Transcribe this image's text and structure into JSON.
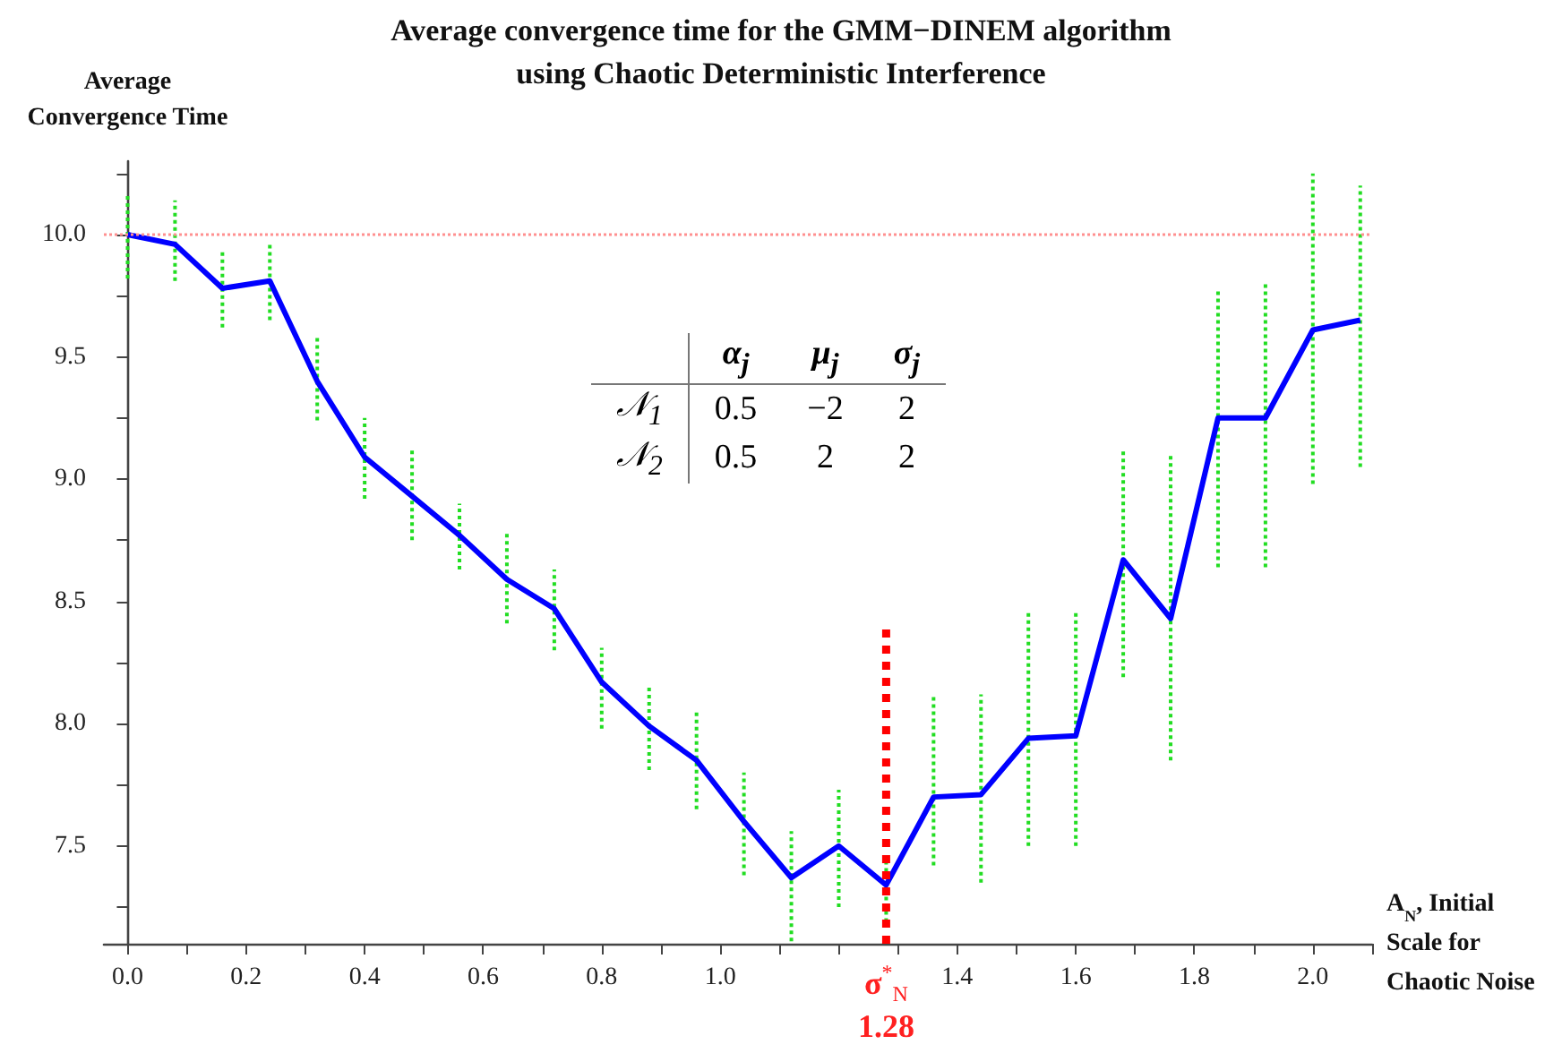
{
  "chart_data": {
    "type": "line",
    "title": "Average convergence time for the GMM−DINEM algorithm\nusing Chaotic Deterministic Interference",
    "ylabel": "Average\nConvergence Time",
    "xlabel": "A$_{N}$, Initial\nScale for\nChaotic Noise",
    "x": [
      0,
      0.08,
      0.16,
      0.24,
      0.32,
      0.4,
      0.48,
      0.56,
      0.64,
      0.72,
      0.8,
      0.88,
      0.96,
      1.04,
      1.12,
      1.2,
      1.28,
      1.36,
      1.44,
      1.52,
      1.6,
      1.68,
      1.76,
      1.84,
      1.92,
      2.0,
      2.08
    ],
    "series": [
      {
        "color": "#0000ff",
        "line_style": "solid",
        "values": [
          10.0,
          9.96,
          9.78,
          9.81,
          9.4,
          9.09,
          8.93,
          8.77,
          8.59,
          8.47,
          8.17,
          7.99,
          7.85,
          7.6,
          7.37,
          7.5,
          7.34,
          7.7,
          7.71,
          7.94,
          7.95,
          8.67,
          8.43,
          9.25,
          9.25,
          9.61,
          9.65
        ],
        "errors": [
          [
            9.82,
            10.16
          ],
          [
            9.81,
            10.14
          ],
          [
            9.62,
            9.93
          ],
          [
            9.65,
            9.97
          ],
          [
            9.24,
            9.59
          ],
          [
            8.92,
            9.25
          ],
          [
            8.75,
            9.12
          ],
          [
            8.63,
            8.9
          ],
          [
            8.41,
            8.78
          ],
          [
            8.3,
            8.63
          ],
          [
            7.98,
            8.31
          ],
          [
            7.81,
            8.16
          ],
          [
            7.65,
            8.06
          ],
          [
            7.38,
            7.8
          ],
          [
            7.11,
            7.56
          ],
          [
            7.25,
            7.73
          ],
          [
            7.19,
            7.46
          ],
          [
            7.42,
            8.11
          ],
          [
            7.35,
            8.12
          ],
          [
            7.5,
            8.46
          ],
          [
            7.5,
            8.46
          ],
          [
            8.19,
            9.12
          ],
          [
            7.85,
            9.1
          ],
          [
            8.64,
            9.77
          ],
          [
            8.64,
            9.8
          ],
          [
            8.98,
            10.25
          ],
          [
            9.05,
            10.2
          ]
        ]
      },
      {
        "color": "#ff0000",
        "line_style": "dotted",
        "x": [
          1.28,
          1.28
        ],
        "values": [
          7.1,
          8.41
        ]
      }
    ],
    "ref_lines": [
      {
        "axis": "y",
        "value": 10.0,
        "color": "#ff9090",
        "line_style": "dotted"
      }
    ],
    "annotations": [
      {
        "text": "σ$^{*}$$_{N}$\n1.28",
        "x": 1.28,
        "y": 7.1
      },
      "\tα$_{j}$\tμ$_{j}$\tσ$_{j}$",
      "𝒩$_{1}$\t0.5\t−2\t2",
      "𝒩$_{2}$\t0.5\t2\t2"
    ],
    "marker": "none",
    "grid": false,
    "xlim": [
      -0.04,
      2.1
    ],
    "xticks": [
      {
        "value": 0,
        "label": "0.0"
      },
      {
        "value": 0.1,
        "label": null
      },
      0.2,
      {
        "value": 0.3,
        "label": null
      },
      0.4,
      {
        "value": 0.5,
        "label": null
      },
      0.6,
      {
        "value": 0.7,
        "label": null
      },
      0.8,
      {
        "value": 0.9,
        "label": null
      },
      {
        "value": 1.0,
        "label": "1.0"
      },
      {
        "value": 1.1,
        "label": null
      },
      {
        "value": 1.2,
        "label": null
      },
      {
        "value": 1.3,
        "label": null
      },
      1.4,
      {
        "value": 1.5,
        "label": null
      },
      1.6,
      {
        "value": 1.7,
        "label": null
      },
      1.8,
      {
        "value": 1.9,
        "label": null
      },
      {
        "value": 2.0,
        "label": "2.0"
      },
      {
        "value": 2.1,
        "label": null
      }
    ],
    "ylim": [
      7.1,
      10.3
    ],
    "yticks": [
      {
        "value": 7.25,
        "label": null
      },
      7.5,
      {
        "value": 7.75,
        "label": null
      },
      {
        "value": 8.0,
        "label": "8.0"
      },
      {
        "value": 8.25,
        "label": null
      },
      8.5,
      {
        "value": 8.75,
        "label": null
      },
      {
        "value": 9.0,
        "label": "9.0"
      },
      {
        "value": 9.25,
        "label": null
      },
      9.5,
      {
        "value": 9.75,
        "label": null
      },
      {
        "value": 10.0,
        "label": "10.0"
      },
      {
        "value": 10.25,
        "label": null
      }
    ]
  }
}
